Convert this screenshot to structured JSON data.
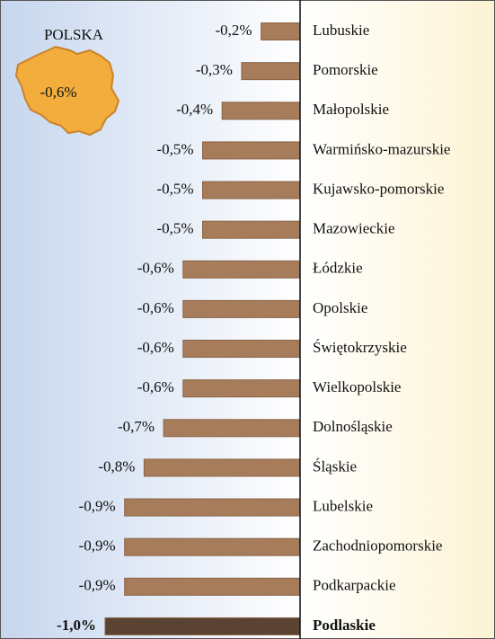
{
  "chart_data": {
    "type": "bar",
    "annotations": [
      "POLSKA",
      "-0,6%"
    ],
    "categories": [
      "Lubuskie",
      "Pomorskie",
      "Małopolskie",
      "Warmińsko-mazurskie",
      "Kujawsko-pomorskie",
      "Mazowieckie",
      "Łódzkie",
      "Opolskie",
      "Świętokrzyskie",
      "Wielkopolskie",
      "Dolnośląskie",
      "Śląskie",
      "Lubelskie",
      "Zachodniopomorskie",
      "Podkarpackie",
      "Podlaskie"
    ],
    "values": [
      -0.2,
      -0.3,
      -0.4,
      -0.5,
      -0.5,
      -0.5,
      -0.6,
      -0.6,
      -0.6,
      -0.6,
      -0.7,
      -0.8,
      -0.9,
      -0.9,
      -0.9,
      -1.0
    ],
    "value_labels": [
      "-0,2%",
      "-0,3%",
      "-0,4%",
      "-0,5%",
      "-0,5%",
      "-0,5%",
      "-0,6%",
      "-0,6%",
      "-0,6%",
      "-0,6%",
      "-0,7%",
      "-0,8%",
      "-0,9%",
      "-0,9%",
      "-0,9%",
      "-1,0%"
    ],
    "colors": [
      "#a67c5b",
      "#a67c5b",
      "#a67c5b",
      "#a67c5b",
      "#a67c5b",
      "#a67c5b",
      "#a67c5b",
      "#a67c5b",
      "#a67c5b",
      "#a67c5b",
      "#a67c5b",
      "#a67c5b",
      "#a67c5b",
      "#a67c5b",
      "#a67c5b",
      "#5a4332"
    ]
  }
}
